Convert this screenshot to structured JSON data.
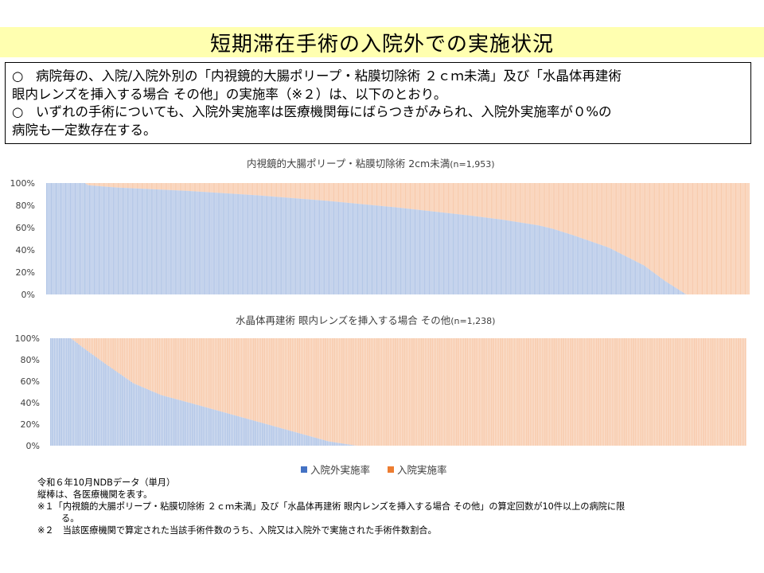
{
  "page": {
    "title": "短期滞在手術の入院外での実施状況",
    "summary": [
      {
        "mark": "○",
        "lines": [
          "病院毎の、入院/入院外別の「内視鏡的大腸ポリープ・粘膜切除術 ２ｃｍ未満」及び「水晶体再建術",
          "眼内レンズを挿入する場合 その他」の実施率（※２）は、以下のとおり。"
        ]
      },
      {
        "mark": "○",
        "lines": [
          "いずれの手術についても、入院外実施率は医療機関毎にばらつきがみられ、入院外実施率が０%の",
          "病院も一定数存在する。"
        ]
      }
    ],
    "notes": [
      "令和６年10月NDBデータ（単月）",
      "縦棒は、各医療機関を表す。",
      "※１「内視鏡的大腸ポリープ・粘膜切除術 ２ｃｍ未満」及び「水晶体再建術 眼内レンズを挿入する場合 その他」の算定回数が10件以上の病院に限",
      "る。",
      "※２　当該医療機関で算定された当該手術件数のうち、入院又は入院外で実施された手術件数割合。"
    ],
    "legend": [
      {
        "label": "入院外実施率",
        "color": "#4472c4"
      },
      {
        "label": "入院実施率",
        "color": "#ed7d31"
      }
    ]
  },
  "chart_data": [
    {
      "type": "bar",
      "stacked": true,
      "title": "内視鏡的大腸ポリープ・粘膜切除術 2cm未満",
      "n_label": "(n=1,953)",
      "n": 1953,
      "ylim": [
        0,
        100
      ],
      "yticks": [
        "0%",
        "20%",
        "40%",
        "60%",
        "80%",
        "100%"
      ],
      "grid": false,
      "series": [
        {
          "name": "入院外実施率",
          "color": "#b4c7e7"
        },
        {
          "name": "入院実施率",
          "color": "#f8cbad"
        }
      ],
      "outpatient_rate_percent_sorted_desc": [
        {
          "x": 0.0,
          "y": 100
        },
        {
          "x": 0.055,
          "y": 100
        },
        {
          "x": 0.06,
          "y": 98
        },
        {
          "x": 0.1,
          "y": 96
        },
        {
          "x": 0.2,
          "y": 93
        },
        {
          "x": 0.3,
          "y": 89
        },
        {
          "x": 0.4,
          "y": 84
        },
        {
          "x": 0.5,
          "y": 78
        },
        {
          "x": 0.6,
          "y": 71
        },
        {
          "x": 0.65,
          "y": 67
        },
        {
          "x": 0.7,
          "y": 62
        },
        {
          "x": 0.72,
          "y": 59
        },
        {
          "x": 0.75,
          "y": 53
        },
        {
          "x": 0.8,
          "y": 42
        },
        {
          "x": 0.85,
          "y": 26
        },
        {
          "x": 0.88,
          "y": 12
        },
        {
          "x": 0.9,
          "y": 4
        },
        {
          "x": 0.91,
          "y": 0
        },
        {
          "x": 1.0,
          "y": 0
        }
      ]
    },
    {
      "type": "bar",
      "stacked": true,
      "title": "水晶体再建術 眼内レンズを挿入する場合 その他",
      "n_label": "(n=1,238)",
      "n": 1238,
      "ylim": [
        0,
        100
      ],
      "yticks": [
        "0%",
        "20%",
        "40%",
        "60%",
        "80%",
        "100%"
      ],
      "grid": false,
      "series": [
        {
          "name": "入院外実施率",
          "color": "#b4c7e7"
        },
        {
          "name": "入院実施率",
          "color": "#f8cbad"
        }
      ],
      "outpatient_rate_percent_sorted_desc": [
        {
          "x": 0.0,
          "y": 100
        },
        {
          "x": 0.03,
          "y": 100
        },
        {
          "x": 0.05,
          "y": 90
        },
        {
          "x": 0.08,
          "y": 76
        },
        {
          "x": 0.12,
          "y": 58
        },
        {
          "x": 0.16,
          "y": 47
        },
        {
          "x": 0.2,
          "y": 40
        },
        {
          "x": 0.25,
          "y": 31
        },
        {
          "x": 0.3,
          "y": 22
        },
        {
          "x": 0.35,
          "y": 13
        },
        {
          "x": 0.4,
          "y": 4
        },
        {
          "x": 0.44,
          "y": 0
        },
        {
          "x": 1.0,
          "y": 0
        }
      ]
    }
  ]
}
